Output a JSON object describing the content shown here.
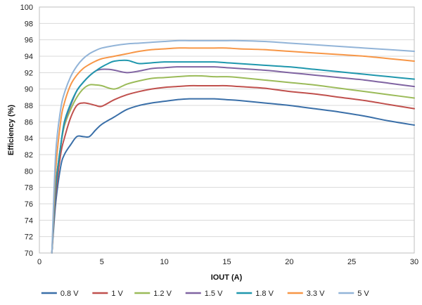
{
  "chart_data": {
    "type": "line",
    "xlabel": "IOUT (A)",
    "ylabel": "Efficiency (%)",
    "xlim": [
      0,
      30
    ],
    "ylim": [
      70,
      100
    ],
    "xticks": [
      0,
      5,
      10,
      15,
      20,
      25,
      30
    ],
    "yticks": [
      70,
      72,
      74,
      76,
      78,
      80,
      82,
      84,
      86,
      88,
      90,
      92,
      94,
      96,
      98,
      100
    ],
    "grid": "horizontal",
    "legend_position": "bottom",
    "series": [
      {
        "name": "0.8 V",
        "color": "#3a6fa8",
        "x": [
          1,
          1.3,
          1.7,
          2,
          2.5,
          3,
          3.5,
          4,
          4.5,
          5,
          6,
          7,
          8,
          9,
          10,
          11,
          12,
          13,
          14,
          15,
          16,
          18,
          20,
          22,
          24,
          26,
          28,
          30
        ],
        "y": [
          70,
          76,
          80.5,
          82,
          83.2,
          84.2,
          84.2,
          84.2,
          85,
          85.7,
          86.6,
          87.5,
          88,
          88.3,
          88.5,
          88.7,
          88.8,
          88.8,
          88.8,
          88.7,
          88.6,
          88.3,
          88,
          87.6,
          87.2,
          86.7,
          86.1,
          85.6
        ]
      },
      {
        "name": "1 V",
        "color": "#c0504d",
        "x": [
          1,
          1.3,
          1.7,
          2,
          2.5,
          3,
          3.5,
          4,
          4.5,
          5,
          6,
          7,
          8,
          9,
          10,
          11,
          12,
          13,
          14,
          15,
          16,
          18,
          20,
          22,
          24,
          26,
          28,
          30
        ],
        "y": [
          70,
          77,
          82,
          84,
          86.5,
          88,
          88.3,
          88.2,
          88,
          87.9,
          88.7,
          89.3,
          89.7,
          90,
          90.2,
          90.3,
          90.4,
          90.4,
          90.4,
          90.4,
          90.3,
          90.1,
          89.7,
          89.4,
          89,
          88.6,
          88.1,
          87.6
        ]
      },
      {
        "name": "1.2 V",
        "color": "#9bbb59",
        "x": [
          1,
          1.3,
          1.7,
          2,
          2.5,
          3,
          3.5,
          4,
          4.5,
          5,
          6,
          7,
          8,
          9,
          10,
          11,
          12,
          13,
          14,
          15,
          16,
          18,
          20,
          22,
          24,
          26,
          28,
          30
        ],
        "y": [
          70,
          78,
          83,
          85.5,
          87.5,
          89,
          90,
          90.5,
          90.5,
          90.4,
          90,
          90.6,
          91,
          91.3,
          91.4,
          91.5,
          91.6,
          91.6,
          91.5,
          91.5,
          91.4,
          91.1,
          90.8,
          90.5,
          90.1,
          89.7,
          89.3,
          88.9
        ]
      },
      {
        "name": "1.5 V",
        "color": "#8064a2",
        "x": [
          1,
          1.3,
          1.7,
          2,
          2.5,
          3,
          3.5,
          4,
          4.5,
          5,
          5.5,
          6,
          7,
          8,
          9,
          10,
          11,
          12,
          13,
          14,
          15,
          16,
          18,
          20,
          22,
          24,
          26,
          28,
          30
        ],
        "y": [
          70,
          78,
          83,
          85.8,
          88,
          89.8,
          90.8,
          91.6,
          92.2,
          92.4,
          92.4,
          92.3,
          92,
          92.2,
          92.5,
          92.6,
          92.7,
          92.7,
          92.7,
          92.7,
          92.6,
          92.5,
          92.3,
          92,
          91.7,
          91.4,
          91.1,
          90.7,
          90.3
        ]
      },
      {
        "name": "1.8 V",
        "color": "#1f97ad",
        "x": [
          1,
          1.3,
          1.7,
          2,
          2.5,
          3,
          3.5,
          4,
          4.5,
          5,
          5.5,
          6,
          7,
          7.5,
          8,
          9,
          10,
          11,
          12,
          13,
          14,
          15,
          16,
          18,
          20,
          22,
          24,
          26,
          28,
          30
        ],
        "y": [
          70,
          78,
          83,
          86,
          88.2,
          89.8,
          90.8,
          91.6,
          92.2,
          92.7,
          93.1,
          93.4,
          93.5,
          93.3,
          93.1,
          93.2,
          93.3,
          93.3,
          93.3,
          93.3,
          93.3,
          93.2,
          93.1,
          92.9,
          92.7,
          92.4,
          92.1,
          91.8,
          91.5,
          91.2
        ]
      },
      {
        "name": "3.3 V",
        "color": "#f79646",
        "x": [
          1,
          1.3,
          1.7,
          2,
          2.5,
          3,
          3.5,
          4,
          4.5,
          5,
          6,
          7,
          8,
          9,
          10,
          11,
          12,
          13,
          14,
          15,
          16,
          18,
          20,
          22,
          24,
          26,
          28,
          30
        ],
        "y": [
          70,
          80,
          86,
          88.3,
          90.5,
          91.7,
          92.5,
          93,
          93.4,
          93.7,
          94,
          94.3,
          94.6,
          94.8,
          94.9,
          95,
          95,
          95,
          95,
          95,
          94.9,
          94.8,
          94.6,
          94.4,
          94.2,
          94,
          93.7,
          93.4
        ]
      },
      {
        "name": "5 V",
        "color": "#92b4d8",
        "x": [
          1,
          1.3,
          1.7,
          2,
          2.5,
          3,
          3.5,
          4,
          4.5,
          5,
          6,
          7,
          8,
          9,
          10,
          11,
          12,
          13,
          14,
          15,
          16,
          18,
          20,
          22,
          24,
          26,
          28,
          30
        ],
        "y": [
          70,
          82,
          87.5,
          89.5,
          91.5,
          92.8,
          93.7,
          94.3,
          94.7,
          95,
          95.3,
          95.5,
          95.6,
          95.7,
          95.8,
          95.9,
          95.9,
          95.9,
          95.9,
          95.9,
          95.9,
          95.8,
          95.6,
          95.4,
          95.2,
          95,
          94.8,
          94.6
        ]
      }
    ]
  }
}
